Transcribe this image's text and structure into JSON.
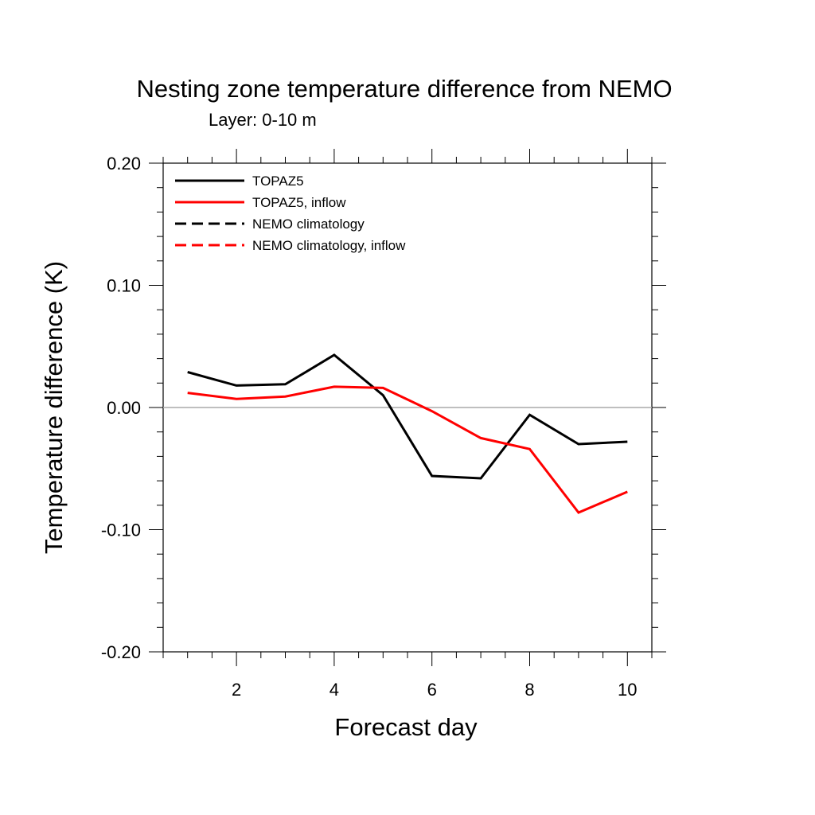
{
  "chart_data": {
    "type": "line",
    "title": "Nesting zone temperature difference from NEMO",
    "subtitle": "Layer: 0-10 m",
    "xlabel": "Forecast day",
    "ylabel": "Temperature difference (K)",
    "xlim": [
      0.5,
      10.5
    ],
    "ylim": [
      -0.2,
      0.2
    ],
    "xticks": [
      2,
      4,
      6,
      8,
      10
    ],
    "xtick_labels": [
      "2",
      "4",
      "6",
      "8",
      "10"
    ],
    "yticks": [
      0.2,
      0.1,
      0.0,
      -0.1,
      -0.2
    ],
    "ytick_labels": [
      "0.20",
      "0.10",
      "0.00",
      "-0.10",
      "-0.20"
    ],
    "reference_line": 0.0,
    "grid": false,
    "legend_position": "top-left",
    "x": [
      1,
      2,
      3,
      4,
      5,
      6,
      7,
      8,
      9,
      10
    ],
    "series": [
      {
        "name": "TOPAZ5",
        "color": "#000000",
        "dash": "solid",
        "values": [
          0.029,
          0.018,
          0.019,
          0.043,
          0.01,
          -0.056,
          -0.058,
          -0.006,
          -0.03,
          -0.028
        ]
      },
      {
        "name": "TOPAZ5, inflow",
        "color": "#ff0000",
        "dash": "solid",
        "values": [
          0.012,
          0.007,
          0.009,
          0.017,
          0.016,
          -0.003,
          -0.025,
          -0.034,
          -0.086,
          -0.069
        ]
      },
      {
        "name": "NEMO climatology",
        "color": "#000000",
        "dash": "dashed",
        "values": []
      },
      {
        "name": "NEMO climatology, inflow",
        "color": "#ff0000",
        "dash": "dashed",
        "values": []
      }
    ]
  }
}
